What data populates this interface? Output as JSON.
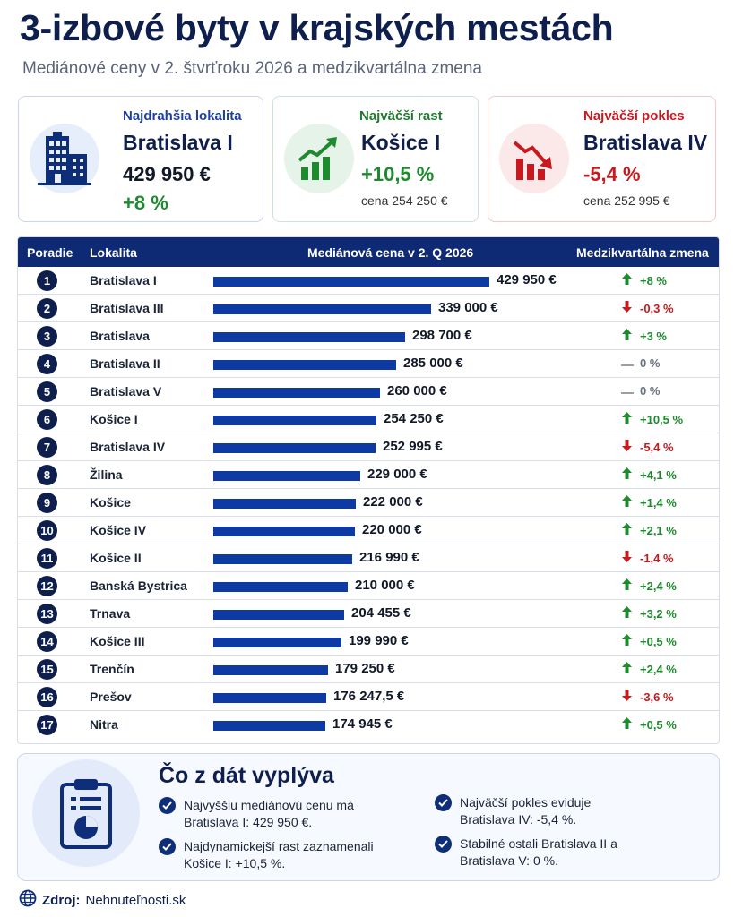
{
  "header": {
    "title": "3-izbové byty v krajských mestách",
    "subtitle": "Mediánové ceny v 2. štvrťroku 2026 a medzikvartálna zmena"
  },
  "cards": {
    "most_expensive": {
      "label": "Najdrahšia lokalita",
      "name": "Bratislava I",
      "price": "429 950 €",
      "change": "+8 %",
      "icon": "buildings-icon"
    },
    "biggest_growth": {
      "label": "Najväčší rast",
      "name": "Košice I",
      "change": "+10,5 %",
      "price_note": "cena 254 250 €",
      "icon": "growth-chart-icon"
    },
    "biggest_drop": {
      "label": "Najväčší pokles",
      "name": "Bratislava IV",
      "change": "-5,4 %",
      "price_note": "cena 252 995 €",
      "icon": "decline-chart-icon"
    }
  },
  "table": {
    "headers": {
      "rank": "Poradie",
      "location": "Lokalita",
      "price": "Mediánová cena v 2. Q 2026",
      "change": "Medzikvartálna zmena"
    }
  },
  "chart_data": {
    "type": "bar",
    "title": "Mediánová cena v 2. Q 2026",
    "categories": [
      "Bratislava I",
      "Bratislava III",
      "Bratislava",
      "Bratislava II",
      "Bratislava V",
      "Košice I",
      "Bratislava IV",
      "Žilina",
      "Košice",
      "Košice IV",
      "Košice II",
      "Banská Bystrica",
      "Trnava",
      "Košice III",
      "Trenčín",
      "Prešov",
      "Nitra"
    ],
    "values": [
      429950,
      339000,
      298700,
      285000,
      260000,
      254250,
      252995,
      229000,
      222000,
      220000,
      216990,
      210000,
      204455,
      199990,
      179250,
      176247.5,
      174945
    ],
    "value_labels": [
      "429 950 €",
      "339 000 €",
      "298 700 €",
      "285 000 €",
      "260 000 €",
      "254 250 €",
      "252 995 €",
      "229 000 €",
      "222 000 €",
      "220 000 €",
      "216 990 €",
      "210 000 €",
      "204 455 €",
      "199 990 €",
      "179 250 €",
      "176 247,5 €",
      "174 945 €"
    ],
    "ranks": [
      "1",
      "2",
      "3",
      "4",
      "5",
      "6",
      "7",
      "8",
      "9",
      "10",
      "11",
      "12",
      "13",
      "14",
      "15",
      "16",
      "17"
    ],
    "changes": [
      "+8 %",
      "-0,3 %",
      "+3 %",
      "0 %",
      "0 %",
      "+10,5 %",
      "-5,4 %",
      "+4,1 %",
      "+1,4 %",
      "+2,1 %",
      "-1,4 %",
      "+2,4 %",
      "+3,2 %",
      "+0,5 %",
      "+2,4 %",
      "-3,6 %",
      "+0,5 %"
    ],
    "change_direction": [
      "up",
      "down",
      "up",
      "flat",
      "flat",
      "up",
      "down",
      "up",
      "up",
      "up",
      "down",
      "up",
      "up",
      "up",
      "up",
      "down",
      "up"
    ],
    "bar_color": "#0d3aa3",
    "up_color": "#1e8a2e",
    "down_color": "#c8191f"
  },
  "summary": {
    "title": "Čo z dát vyplýva",
    "points": [
      "Najvyššiu mediánovú cenu má Bratislava I: 429 950 €.",
      "Najdynamickejší rast zaznamenali Košice I: +10,5 %.",
      "Najväčší pokles eviduje Bratislava IV: -5,4 %.",
      "Stabilné ostali Bratislava II a Bratislava V: 0 %."
    ],
    "icon": "clipboard-chart-icon"
  },
  "source": {
    "label": "Zdroj:",
    "value": "Nehnuteľnosti.sk",
    "icon": "globe-icon"
  }
}
